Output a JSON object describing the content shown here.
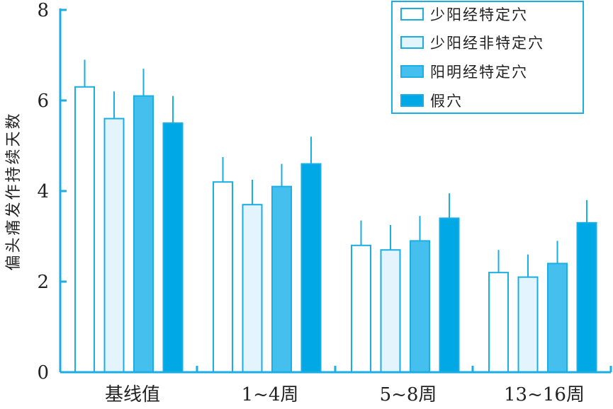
{
  "chart_data": {
    "type": "bar",
    "title": "",
    "xlabel": "",
    "ylabel": "偏头痛发作持续天数",
    "ylim": [
      0,
      8
    ],
    "yticks": [
      0,
      2,
      4,
      6,
      8
    ],
    "grid": false,
    "legend_position": "top-right",
    "categories": [
      "基线值",
      "1~4周",
      "5~8周",
      "13~16周"
    ],
    "series": [
      {
        "name": "少阳经特定穴",
        "values": [
          6.3,
          4.2,
          2.8,
          2.2
        ],
        "errors": [
          0.6,
          0.55,
          0.55,
          0.5
        ],
        "fill": "#ffffff"
      },
      {
        "name": "少阳经非特定穴",
        "values": [
          5.6,
          3.7,
          2.7,
          2.1
        ],
        "errors": [
          0.6,
          0.55,
          0.55,
          0.5
        ],
        "fill": "#e3f4fc"
      },
      {
        "name": "阳明经特定穴",
        "values": [
          6.1,
          4.1,
          2.9,
          2.4
        ],
        "errors": [
          0.6,
          0.5,
          0.55,
          0.5
        ],
        "fill": "#45c0ee"
      },
      {
        "name": "假穴",
        "values": [
          5.5,
          4.6,
          3.4,
          3.3
        ],
        "errors": [
          0.6,
          0.6,
          0.55,
          0.5
        ],
        "fill": "#00a8e6"
      }
    ]
  },
  "colors": {
    "stroke": "#1aaee5",
    "axis": "#1aaee5",
    "text": "#222222"
  }
}
